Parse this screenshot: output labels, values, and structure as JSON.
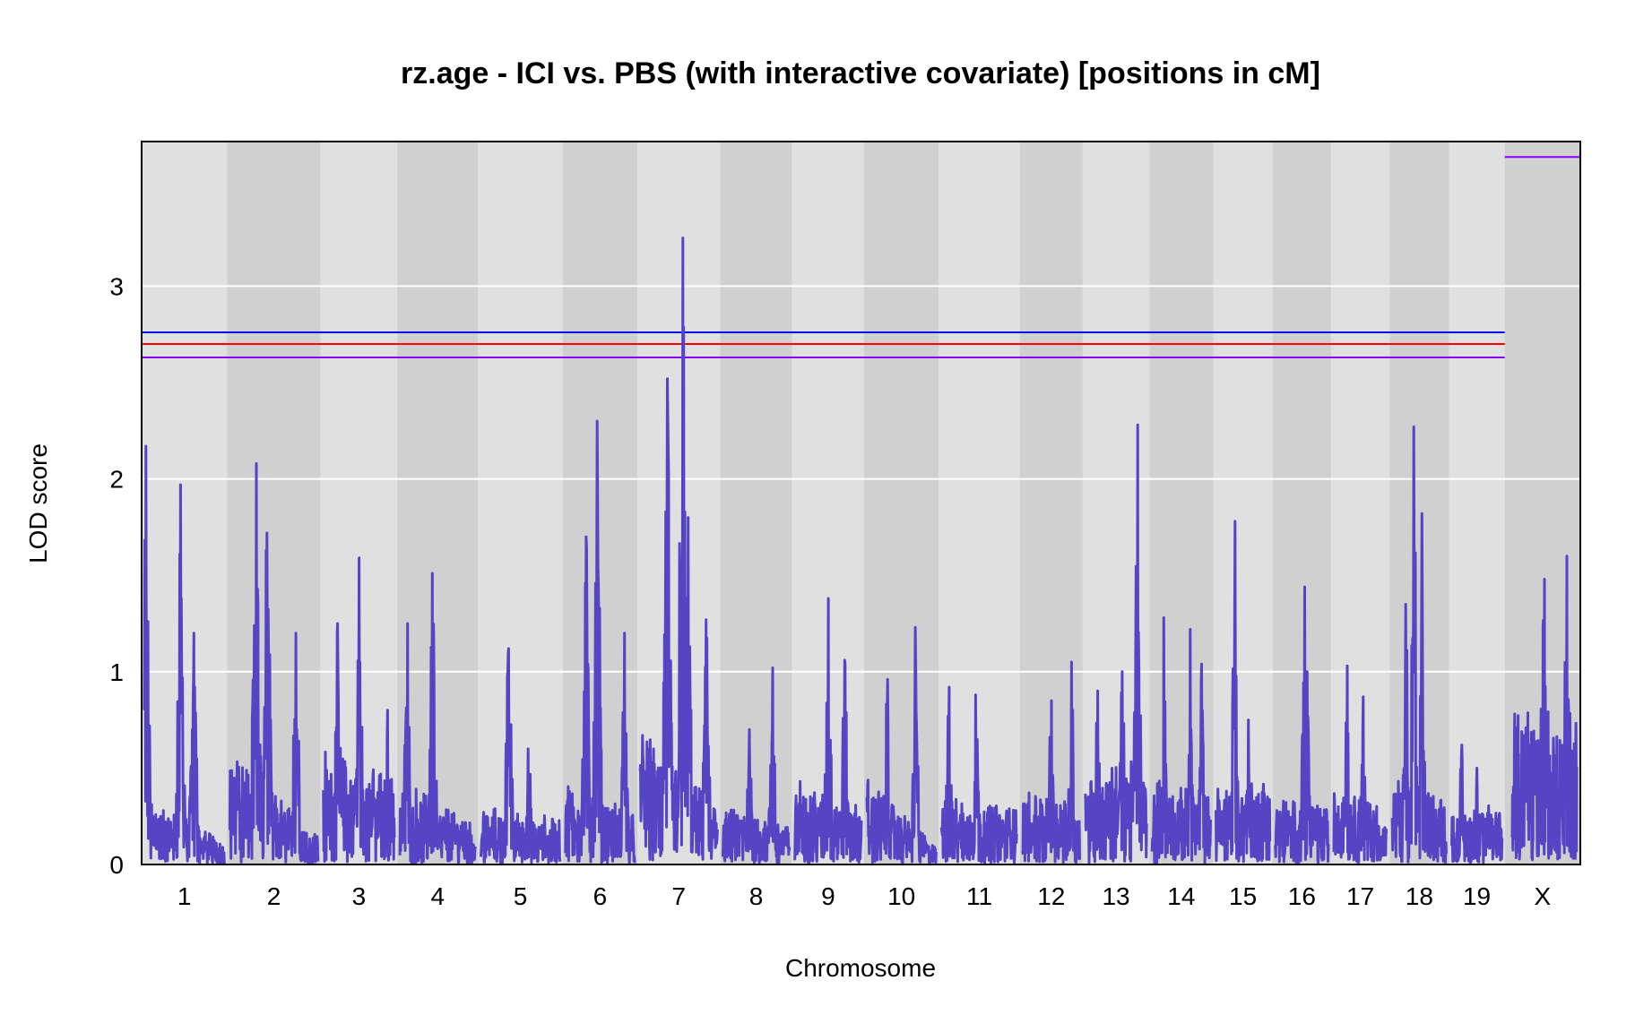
{
  "chart_data": {
    "type": "line",
    "title": "rz.age - ICI vs. PBS (with interactive covariate) [positions in cM]",
    "xlabel": "Chromosome",
    "ylabel": "LOD score",
    "ylim": [
      0,
      3.75
    ],
    "y_ticks": [
      0,
      1,
      2,
      3
    ],
    "grid": true,
    "line_color": "#5544c4",
    "band_colors": [
      "#e0e0e0",
      "#d0d0d0"
    ],
    "chromosomes": [
      {
        "label": "1",
        "width": 95,
        "peaks": [
          [
            0.02,
            2.17
          ],
          [
            0.45,
            1.97
          ],
          [
            0.62,
            1.2
          ]
        ],
        "base": 0.35,
        "tail_base": 0.12
      },
      {
        "label": "2",
        "width": 104,
        "peaks": [
          [
            0.3,
            2.08
          ],
          [
            0.42,
            1.72
          ],
          [
            0.75,
            1.2
          ]
        ],
        "base": 0.6,
        "tail_base": 0.15
      },
      {
        "label": "3",
        "width": 85,
        "peaks": [
          [
            0.5,
            1.59
          ],
          [
            0.2,
            1.25
          ],
          [
            0.9,
            0.8
          ]
        ],
        "base": 0.6,
        "tail_base": 0.45
      },
      {
        "label": "4",
        "width": 90,
        "peaks": [
          [
            0.43,
            1.51
          ],
          [
            0.1,
            1.25
          ]
        ],
        "base": 0.45,
        "tail_base": 0.2
      },
      {
        "label": "5",
        "width": 94,
        "peaks": [
          [
            0.35,
            1.12
          ],
          [
            0.6,
            0.6
          ]
        ],
        "base": 0.3,
        "tail_base": 0.25
      },
      {
        "label": "6",
        "width": 83,
        "peaks": [
          [
            0.46,
            2.3
          ],
          [
            0.3,
            1.7
          ],
          [
            0.85,
            1.2
          ]
        ],
        "base": 0.5,
        "tail_base": 0.25
      },
      {
        "label": "7",
        "width": 92,
        "peaks": [
          [
            0.55,
            3.25
          ],
          [
            0.35,
            2.52
          ],
          [
            0.62,
            1.8
          ],
          [
            0.85,
            1.27
          ]
        ],
        "base": 0.7,
        "tail_base": 0.3
      },
      {
        "label": "8",
        "width": 80,
        "peaks": [
          [
            0.75,
            1.02
          ],
          [
            0.4,
            0.7
          ]
        ],
        "base": 0.3,
        "tail_base": 0.2
      },
      {
        "label": "9",
        "width": 80,
        "peaks": [
          [
            0.5,
            1.38
          ],
          [
            0.75,
            1.06
          ]
        ],
        "base": 0.45,
        "tail_base": 0.3
      },
      {
        "label": "10",
        "width": 83,
        "peaks": [
          [
            0.7,
            1.23
          ],
          [
            0.3,
            0.96
          ]
        ],
        "base": 0.45,
        "tail_base": 0.1
      },
      {
        "label": "11",
        "width": 90,
        "peaks": [
          [
            0.1,
            0.92
          ],
          [
            0.45,
            0.88
          ]
        ],
        "base": 0.35,
        "tail_base": 0.3
      },
      {
        "label": "12",
        "width": 70,
        "peaks": [
          [
            0.85,
            1.05
          ],
          [
            0.5,
            0.85
          ]
        ],
        "base": 0.4,
        "tail_base": 0.3
      },
      {
        "label": "13",
        "width": 74,
        "peaks": [
          [
            0.85,
            2.28
          ],
          [
            0.6,
            1.0
          ],
          [
            0.2,
            0.9
          ]
        ],
        "base": 0.45,
        "tail_base": 0.6
      },
      {
        "label": "14",
        "width": 71,
        "peaks": [
          [
            0.2,
            1.28
          ],
          [
            0.65,
            1.22
          ],
          [
            0.85,
            1.04
          ]
        ],
        "base": 0.45,
        "tail_base": 0.35
      },
      {
        "label": "15",
        "width": 66,
        "peaks": [
          [
            0.35,
            1.78
          ],
          [
            0.6,
            0.75
          ]
        ],
        "base": 0.4,
        "tail_base": 0.45
      },
      {
        "label": "16",
        "width": 65,
        "peaks": [
          [
            0.55,
            1.44
          ],
          [
            0.6,
            1.0
          ]
        ],
        "base": 0.35,
        "tail_base": 0.3
      },
      {
        "label": "17",
        "width": 65,
        "peaks": [
          [
            0.25,
            1.03
          ],
          [
            0.55,
            0.87
          ]
        ],
        "base": 0.4,
        "tail_base": 0.3
      },
      {
        "label": "18",
        "width": 66,
        "peaks": [
          [
            0.4,
            2.27
          ],
          [
            0.25,
            1.35
          ],
          [
            0.55,
            1.82
          ]
        ],
        "base": 0.45,
        "tail_base": 0.35
      },
      {
        "label": "19",
        "width": 62,
        "peaks": [
          [
            0.2,
            0.62
          ],
          [
            0.5,
            0.5
          ]
        ],
        "base": 0.3,
        "tail_base": 0.32
      },
      {
        "label": "X",
        "width": 84,
        "peaks": [
          [
            0.5,
            1.48
          ],
          [
            0.85,
            1.6
          ]
        ],
        "base": 0.85,
        "tail_base": 0.8,
        "dense": true
      }
    ],
    "thresholds_autosome": [
      {
        "value": 2.76,
        "color": "#0000ff"
      },
      {
        "value": 2.7,
        "color": "#ff0000"
      },
      {
        "value": 2.63,
        "color": "#8800ff"
      }
    ],
    "thresholds_x": [
      {
        "value": 3.67,
        "color": "#8800ff"
      }
    ]
  }
}
